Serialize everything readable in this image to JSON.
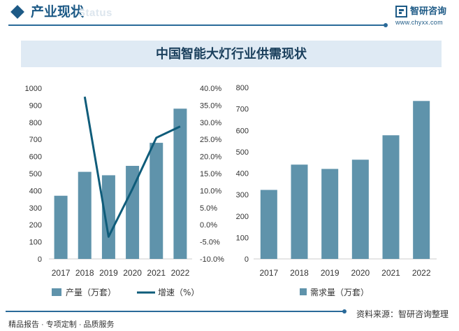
{
  "header": {
    "title": "产业现状",
    "ghost_text": "Status"
  },
  "brand": {
    "name": "智研咨询",
    "url": "www.chyxx.com",
    "logo_icon": "chyxx-logo-icon",
    "color": "#1d5a86"
  },
  "chart_title": "中国智能大灯行业供需现状",
  "chart_data": [
    {
      "type": "bar",
      "categories": [
        "2017",
        "2018",
        "2019",
        "2020",
        "2021",
        "2022"
      ],
      "series": [
        {
          "name": "产量（万套）",
          "type": "bar",
          "axis": "left",
          "values": [
            370,
            510,
            490,
            545,
            680,
            880
          ]
        },
        {
          "name": "增速（%）",
          "type": "line",
          "axis": "right",
          "values": [
            null,
            37.5,
            -3.5,
            10.5,
            25.5,
            28.8
          ]
        }
      ],
      "ylim_left": [
        0,
        1000
      ],
      "yticks_left": [
        "0",
        "100",
        "200",
        "300",
        "400",
        "500",
        "600",
        "700",
        "800",
        "900",
        "1000"
      ],
      "ylim_right": [
        -10,
        40
      ],
      "yticks_right": [
        "-10.0%",
        "-5.0%",
        "0.0%",
        "5.0%",
        "10.0%",
        "15.0%",
        "20.0%",
        "25.0%",
        "30.0%",
        "35.0%",
        "40.0%"
      ],
      "grid": false,
      "legend_position": "bottom-left",
      "colors": {
        "bar": "#5f93ab",
        "line": "#0f5c7a"
      }
    },
    {
      "type": "bar",
      "categories": [
        "2017",
        "2018",
        "2019",
        "2020",
        "2021",
        "2022"
      ],
      "series": [
        {
          "name": "需求量（万套）",
          "type": "bar",
          "values": [
            322,
            440,
            420,
            463,
            577,
            737
          ]
        }
      ],
      "ylim": [
        0,
        800
      ],
      "yticks": [
        "0",
        "100",
        "200",
        "300",
        "400",
        "500",
        "600",
        "700",
        "800"
      ],
      "grid": false,
      "legend_position": "bottom",
      "colors": {
        "bar": "#5f93ab"
      }
    }
  ],
  "footer": {
    "left_text": "精品报告 · 专项定制 · 品质服务",
    "source_text": "资料来源：智研咨询整理"
  }
}
